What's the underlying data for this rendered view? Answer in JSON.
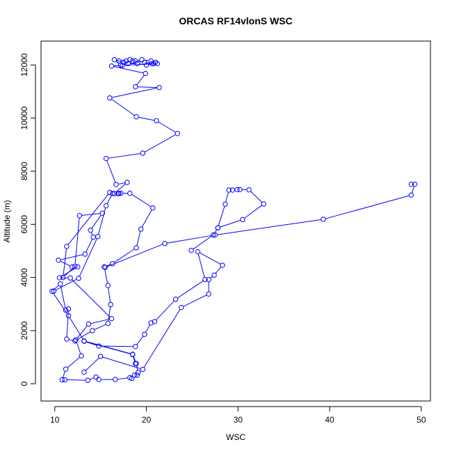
{
  "chart_data": {
    "type": "line",
    "title": "ORCAS RF14vlonS WSC",
    "xlabel": "WSC",
    "ylabel": "Altitude (m)",
    "xlim": [
      8.5,
      51
    ],
    "ylim": [
      -650,
      12900
    ],
    "xticks": [
      "10",
      "20",
      "30",
      "40",
      "50"
    ],
    "yticks": [
      "0",
      "2000",
      "4000",
      "6000",
      "8000",
      "10000",
      "12000"
    ],
    "grid": false,
    "legend": "none",
    "marker": "open-circle",
    "color": "#0000ff",
    "series": [
      {
        "points": [
          [
            17.0,
            12150
          ],
          [
            17.8,
            12150
          ],
          [
            18.2,
            12200
          ],
          [
            18.8,
            12150
          ],
          [
            19.5,
            12200
          ],
          [
            20.5,
            12150
          ],
          [
            21.0,
            12100
          ],
          [
            20.8,
            12050
          ],
          [
            20.0,
            12000
          ],
          [
            19.0,
            12050
          ],
          [
            18.0,
            12050
          ],
          [
            17.2,
            12000
          ],
          [
            16.5,
            12200
          ],
          [
            17.5,
            12100
          ],
          [
            18.5,
            12150
          ],
          [
            19.8,
            12100
          ],
          [
            20.6,
            12050
          ],
          [
            21.2,
            12050
          ],
          [
            17.4,
            11990
          ],
          [
            16.2,
            11960
          ],
          [
            19.9,
            11680
          ],
          [
            18.8,
            11180
          ],
          [
            21.4,
            11150
          ],
          [
            16.0,
            10760
          ],
          [
            18.9,
            10050
          ],
          [
            21.1,
            9900
          ],
          [
            23.4,
            9420
          ],
          [
            19.6,
            8680
          ],
          [
            15.6,
            8480
          ],
          [
            16.7,
            7500
          ],
          [
            17.9,
            7580
          ],
          [
            16.5,
            7160
          ],
          [
            17.0,
            7160
          ],
          [
            16.9,
            7160
          ],
          [
            17.2,
            7170
          ],
          [
            18.2,
            7170
          ],
          [
            20.7,
            6620
          ],
          [
            19.4,
            5820
          ],
          [
            18.9,
            5120
          ],
          [
            16.3,
            4520
          ],
          [
            15.4,
            4400
          ],
          [
            15.8,
            3700
          ],
          [
            16.1,
            2980
          ],
          [
            15.8,
            2270
          ],
          [
            14.1,
            2000
          ],
          [
            12.2,
            1610
          ],
          [
            11.3,
            1680
          ],
          [
            11.5,
            2820
          ],
          [
            11.2,
            2770
          ],
          [
            10.6,
            3760
          ],
          [
            9.7,
            3480
          ],
          [
            11.5,
            2560
          ],
          [
            13.2,
            1610
          ],
          [
            18.5,
            1110
          ],
          [
            18.9,
            760
          ],
          [
            19.1,
            420
          ],
          [
            19.0,
            320
          ],
          [
            18.7,
            320
          ],
          [
            18.4,
            200
          ],
          [
            18.2,
            230
          ],
          [
            16.6,
            160
          ],
          [
            14.8,
            160
          ],
          [
            14.5,
            250
          ],
          [
            13.6,
            130
          ],
          [
            11.1,
            150
          ],
          [
            10.8,
            150
          ],
          [
            11.2,
            550
          ],
          [
            12.9,
            1050
          ],
          [
            12.3,
            1650
          ],
          [
            13.7,
            2250
          ],
          [
            16.2,
            2450
          ],
          [
            11.7,
            3980
          ],
          [
            10.5,
            3990
          ],
          [
            12.5,
            4400
          ],
          [
            11.9,
            4400
          ],
          [
            10.4,
            4650
          ],
          [
            13.3,
            4880
          ],
          [
            14.2,
            5520
          ],
          [
            13.9,
            5780
          ],
          [
            15.2,
            6420
          ],
          [
            12.7,
            6330
          ],
          [
            12.2,
            4420
          ],
          [
            10.9,
            4000
          ],
          [
            11.3,
            5170
          ],
          [
            16.0,
            7200
          ],
          [
            16.3,
            7160
          ],
          [
            15.6,
            6700
          ],
          [
            14.7,
            5540
          ],
          [
            12.6,
            3970
          ],
          [
            9.9,
            3490
          ]
        ]
      },
      {
        "points": [
          [
            15.5,
            4380
          ],
          [
            22.0,
            5280
          ],
          [
            27.5,
            5600
          ],
          [
            39.3,
            6190
          ],
          [
            48.9,
            7100
          ],
          [
            49.3,
            7510
          ],
          [
            48.9,
            7510
          ]
        ]
      },
      {
        "points": [
          [
            13.2,
            440
          ],
          [
            15.0,
            1030
          ],
          [
            19.6,
            540
          ],
          [
            23.8,
            2870
          ],
          [
            26.8,
            3380
          ],
          [
            26.8,
            3920
          ],
          [
            27.4,
            4090
          ],
          [
            28.3,
            4460
          ],
          [
            25.6,
            4970
          ],
          [
            26.4,
            3920
          ],
          [
            23.2,
            3180
          ],
          [
            20.9,
            2340
          ],
          [
            20.5,
            2290
          ],
          [
            19.8,
            1860
          ],
          [
            18.8,
            1400
          ],
          [
            14.8,
            1420
          ],
          [
            13.2,
            1600
          ],
          [
            18.5,
            1100
          ],
          [
            18.8,
            760
          ]
        ]
      },
      {
        "points": [
          [
            24.9,
            5020
          ],
          [
            27.3,
            5600
          ],
          [
            27.8,
            5870
          ],
          [
            30.5,
            6180
          ],
          [
            32.8,
            6770
          ],
          [
            31.2,
            7300
          ],
          [
            30.2,
            7310
          ],
          [
            29.9,
            7310
          ],
          [
            29.4,
            7290
          ],
          [
            29.0,
            7290
          ],
          [
            28.6,
            6760
          ],
          [
            27.8,
            5870
          ]
        ]
      }
    ]
  }
}
